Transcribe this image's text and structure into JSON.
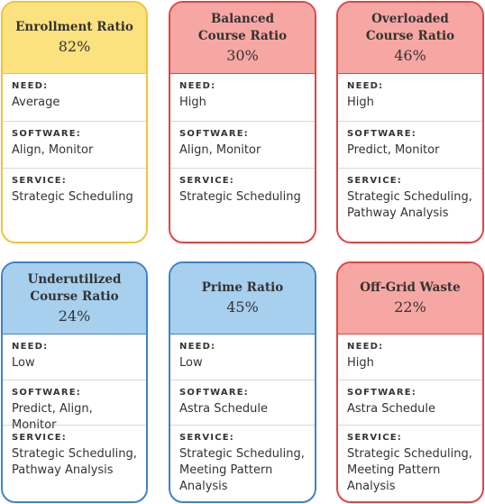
{
  "labels": {
    "need": "NEED:",
    "software": "SOFTWARE:",
    "service": "SERVICE:"
  },
  "colors": {
    "yellow_fill": "#fbe27f",
    "yellow_border": "#f2c23a",
    "red_fill": "#f7a7a3",
    "red_border": "#df4545",
    "blue_fill": "#a7cfee",
    "blue_border": "#3f82c6"
  },
  "cards": [
    {
      "title1": "Enrollment Ratio",
      "title2": "",
      "percent": "82%",
      "need": "Average",
      "software": "Align, Monitor",
      "service1": "Strategic Scheduling",
      "service2": "",
      "service3": ""
    },
    {
      "title1": "Balanced",
      "title2": "Course Ratio",
      "percent": "30%",
      "need": "High",
      "software": "Align, Monitor",
      "service1": "Strategic Scheduling",
      "service2": "",
      "service3": ""
    },
    {
      "title1": "Overloaded",
      "title2": "Course Ratio",
      "percent": "46%",
      "need": "High",
      "software": "Predict, Monitor",
      "service1": "Strategic Scheduling,",
      "service2": "Pathway Analysis",
      "service3": ""
    },
    {
      "title1": "Underutilized",
      "title2": "Course Ratio",
      "percent": "24%",
      "need": "Low",
      "software": "Predict, Align, Monitor",
      "service1": "Strategic Scheduling,",
      "service2": "Pathway Analysis",
      "service3": ""
    },
    {
      "title1": "Prime Ratio",
      "title2": "",
      "percent": "45%",
      "need": "Low",
      "software": "Astra Schedule",
      "service1": "Strategic Scheduling,",
      "service2": "Meeting Pattern",
      "service3": "Analysis"
    },
    {
      "title1": "Off-Grid Waste",
      "title2": "",
      "percent": "22%",
      "need": "High",
      "software": "Astra Schedule",
      "service1": "Strategic Scheduling,",
      "service2": "Meeting Pattern",
      "service3": "Analysis"
    }
  ]
}
